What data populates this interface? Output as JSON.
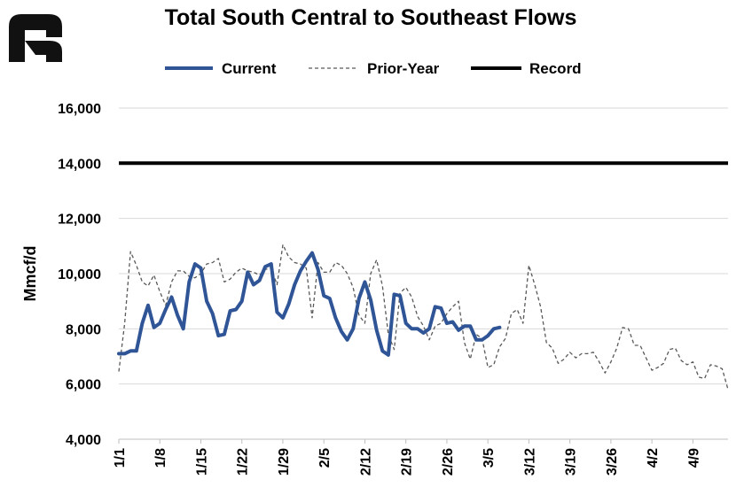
{
  "logo": {
    "text": "R",
    "name": "company-logo"
  },
  "chart_data": {
    "type": "line",
    "title": "Total South Central to Southeast Flows",
    "xlabel": "",
    "ylabel": "Mmcf/d",
    "ylim": [
      4000,
      16000
    ],
    "yticks": [
      4000,
      6000,
      8000,
      10000,
      12000,
      14000,
      16000
    ],
    "ytick_labels": [
      "4,000",
      "6,000",
      "8,000",
      "10,000",
      "12,000",
      "14,000",
      "16,000"
    ],
    "x_range_days": [
      0,
      104
    ],
    "xtick_labels": [
      "1/1",
      "1/8",
      "1/15",
      "1/22",
      "1/29",
      "2/5",
      "2/12",
      "2/19",
      "2/26",
      "3/5",
      "3/12",
      "3/19",
      "3/26",
      "4/2",
      "4/9"
    ],
    "xtick_days": [
      0,
      7,
      14,
      21,
      28,
      35,
      42,
      49,
      56,
      63,
      70,
      77,
      84,
      91,
      98
    ],
    "grid": true,
    "legend_position": "top",
    "series": [
      {
        "name": "Current",
        "style": "solid-thick",
        "color": "#2F5597",
        "values": [
          7100,
          7100,
          7200,
          7200,
          8200,
          8850,
          8050,
          8200,
          8700,
          9150,
          8500,
          8000,
          9700,
          10350,
          10200,
          9000,
          8550,
          7750,
          7800,
          8650,
          8700,
          9000,
          10050,
          9600,
          9750,
          10250,
          10350,
          8600,
          8400,
          8900,
          9600,
          10100,
          10450,
          10750,
          10150,
          9200,
          9100,
          8400,
          7900,
          7600,
          8000,
          9100,
          9700,
          9050,
          7950,
          7200,
          7050,
          9250,
          9200,
          8200,
          8000,
          8000,
          7850,
          8000,
          8800,
          8750,
          8200,
          8250,
          7950,
          8100,
          8100,
          7600,
          7600,
          7750,
          8000,
          8050
        ]
      },
      {
        "name": "Prior-Year",
        "style": "dashed",
        "color": "#595959",
        "values": [
          6450,
          8200,
          10800,
          10300,
          9700,
          9550,
          9950,
          9350,
          8850,
          9700,
          10100,
          10100,
          9900,
          9850,
          10000,
          10350,
          10400,
          10550,
          9700,
          9800,
          10050,
          10200,
          10100,
          10050,
          9950,
          10150,
          10200,
          9600,
          11050,
          10600,
          10400,
          10350,
          10200,
          8400,
          10400,
          10050,
          10050,
          10400,
          10300,
          10000,
          9500,
          8500,
          8200,
          10000,
          10500,
          9550,
          7800,
          7250,
          9300,
          9500,
          9150,
          8450,
          8100,
          7600,
          8100,
          8200,
          8550,
          8800,
          9000,
          7500,
          6900,
          7800,
          7650,
          6600,
          6700,
          7350,
          7650,
          8550,
          8700,
          8200,
          10300,
          9600,
          8800,
          7500,
          7300,
          6750,
          6900,
          7150,
          6950,
          7100,
          7100,
          7150,
          6800,
          6400,
          6800,
          7300,
          8050,
          8000,
          7400,
          7400,
          6950,
          6500,
          6600,
          6750,
          7250,
          7300,
          6850,
          6700,
          6800,
          6250,
          6200,
          6700,
          6650,
          6550,
          5800
        ]
      },
      {
        "name": "Record",
        "style": "solid-black",
        "color": "#000000",
        "values": [
          14000,
          14000
        ]
      }
    ]
  }
}
